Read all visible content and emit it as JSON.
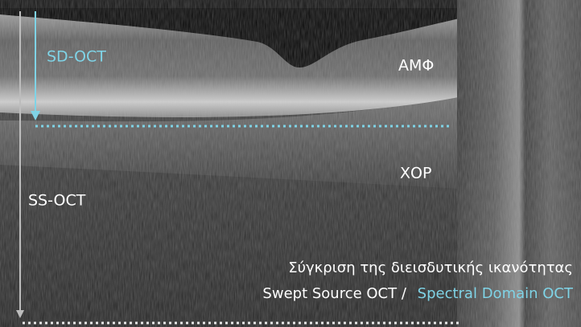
{
  "labels": {
    "sd_oct": "SD-OCT",
    "ss_oct": "SS-OCT",
    "amf": "ΑΜΦ",
    "xop": "ΧΟΡ"
  },
  "caption": {
    "line1": "Σύγκριση της διεισδυτικής ικανότητας",
    "line2_white": "Swept Source OCT /",
    "line2_cyan": "Spectral Domain OCT"
  }
}
